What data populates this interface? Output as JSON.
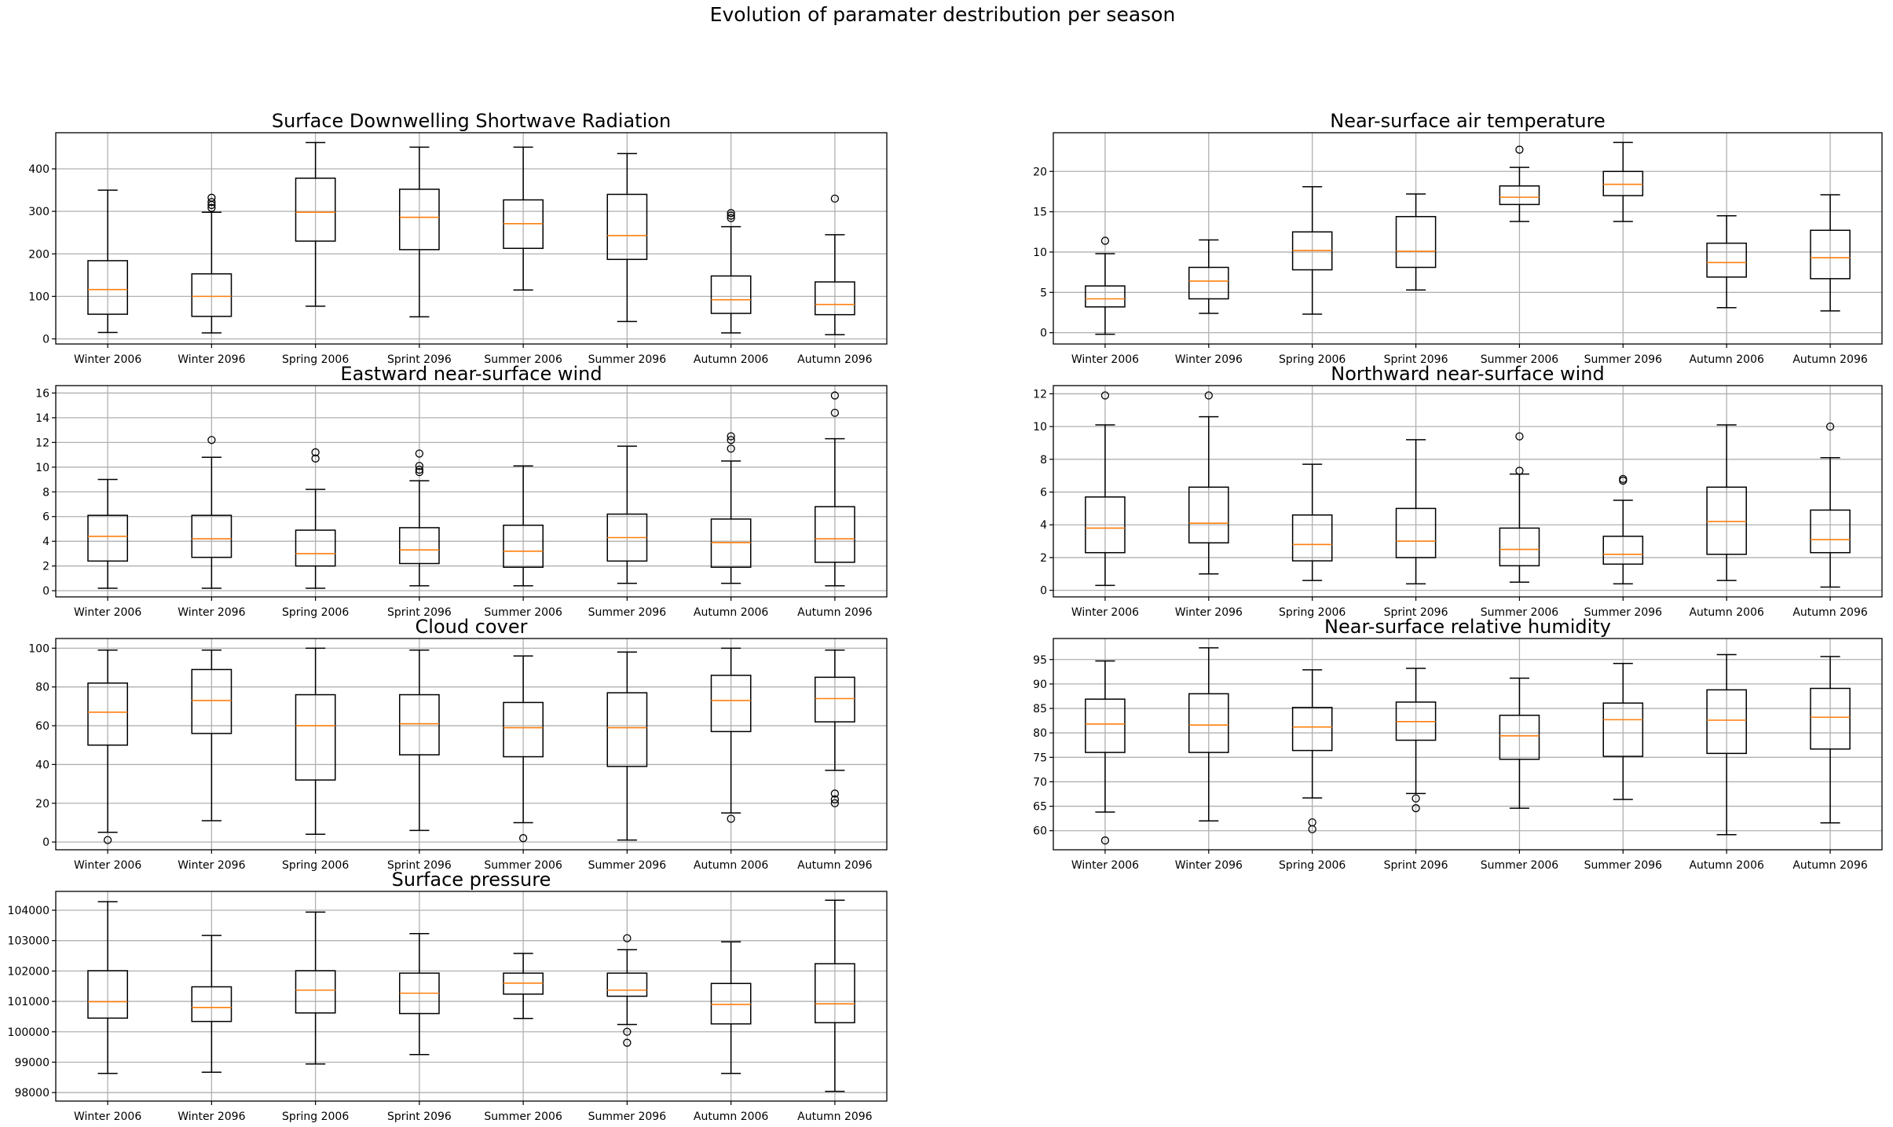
{
  "figure": {
    "suptitle": "Evolution of paramater destribution per season"
  },
  "chart_data": [
    {
      "type": "boxplot",
      "title": "Surface Downwelling Shortwave Radiation",
      "categories": [
        "Winter 2006",
        "Winter 2096",
        "Spring 2006",
        "Sprint 2096",
        "Summer 2006",
        "Summer 2096",
        "Autumn 2006",
        "Autumn 2096"
      ],
      "ylim": [
        -12,
        485
      ],
      "yticks": [
        0,
        100,
        200,
        300,
        400
      ],
      "grid": true,
      "boxes": [
        {
          "whislo": 15,
          "q1": 58,
          "med": 116,
          "q3": 184,
          "whishi": 350,
          "fliers": []
        },
        {
          "whislo": 14,
          "q1": 53,
          "med": 100,
          "q3": 153,
          "whishi": 298,
          "fliers": [
            308,
            315,
            322,
            332
          ]
        },
        {
          "whislo": 77,
          "q1": 230,
          "med": 298,
          "q3": 378,
          "whishi": 462,
          "fliers": []
        },
        {
          "whislo": 52,
          "q1": 210,
          "med": 286,
          "q3": 352,
          "whishi": 451,
          "fliers": []
        },
        {
          "whislo": 115,
          "q1": 213,
          "med": 271,
          "q3": 327,
          "whishi": 451,
          "fliers": []
        },
        {
          "whislo": 41,
          "q1": 187,
          "med": 243,
          "q3": 340,
          "whishi": 436,
          "fliers": []
        },
        {
          "whislo": 14,
          "q1": 60,
          "med": 92,
          "q3": 148,
          "whishi": 264,
          "fliers": [
            284,
            290,
            296
          ]
        },
        {
          "whislo": 10,
          "q1": 57,
          "med": 81,
          "q3": 134,
          "whishi": 245,
          "fliers": [
            330
          ]
        }
      ]
    },
    {
      "type": "boxplot",
      "title": "Near-surface air temperature",
      "categories": [
        "Winter 2006",
        "Winter 2096",
        "Spring 2006",
        "Sprint 2096",
        "Summer 2006",
        "Summer 2096",
        "Autumn 2006",
        "Autumn 2096"
      ],
      "ylim": [
        -1.4,
        24.8
      ],
      "yticks": [
        0,
        5,
        10,
        15,
        20
      ],
      "grid": true,
      "boxes": [
        {
          "whislo": -0.2,
          "q1": 3.2,
          "med": 4.2,
          "q3": 5.8,
          "whishi": 9.8,
          "fliers": [
            11.4
          ]
        },
        {
          "whislo": 2.4,
          "q1": 4.2,
          "med": 6.4,
          "q3": 8.1,
          "whishi": 11.5,
          "fliers": []
        },
        {
          "whislo": 2.3,
          "q1": 7.8,
          "med": 10.2,
          "q3": 12.5,
          "whishi": 18.1,
          "fliers": []
        },
        {
          "whislo": 5.3,
          "q1": 8.1,
          "med": 10.1,
          "q3": 14.4,
          "whishi": 17.2,
          "fliers": []
        },
        {
          "whislo": 13.8,
          "q1": 15.9,
          "med": 16.8,
          "q3": 18.2,
          "whishi": 20.5,
          "fliers": [
            22.7
          ]
        },
        {
          "whislo": 13.8,
          "q1": 17.0,
          "med": 18.4,
          "q3": 20.0,
          "whishi": 23.6,
          "fliers": []
        },
        {
          "whislo": 3.1,
          "q1": 6.9,
          "med": 8.7,
          "q3": 11.1,
          "whishi": 14.5,
          "fliers": []
        },
        {
          "whislo": 2.7,
          "q1": 6.7,
          "med": 9.3,
          "q3": 12.7,
          "whishi": 17.1,
          "fliers": []
        }
      ]
    },
    {
      "type": "boxplot",
      "title": "Eastward near-surface wind",
      "categories": [
        "Winter 2006",
        "Winter 2096",
        "Spring 2006",
        "Sprint 2096",
        "Summer 2006",
        "Summer 2096",
        "Autumn 2006",
        "Autumn 2096"
      ],
      "ylim": [
        -0.5,
        16.6
      ],
      "yticks": [
        0,
        2,
        4,
        6,
        8,
        10,
        12,
        14,
        16
      ],
      "grid": true,
      "boxes": [
        {
          "whislo": 0.2,
          "q1": 2.4,
          "med": 4.4,
          "q3": 6.1,
          "whishi": 9.0,
          "fliers": []
        },
        {
          "whislo": 0.2,
          "q1": 2.7,
          "med": 4.2,
          "q3": 6.1,
          "whishi": 10.8,
          "fliers": [
            12.2
          ]
        },
        {
          "whislo": 0.2,
          "q1": 2.0,
          "med": 3.0,
          "q3": 4.9,
          "whishi": 8.2,
          "fliers": [
            10.7,
            11.2
          ]
        },
        {
          "whislo": 0.4,
          "q1": 2.2,
          "med": 3.3,
          "q3": 5.1,
          "whishi": 8.9,
          "fliers": [
            9.6,
            9.8,
            10.1,
            11.1
          ]
        },
        {
          "whislo": 0.4,
          "q1": 1.9,
          "med": 3.2,
          "q3": 5.3,
          "whishi": 10.1,
          "fliers": []
        },
        {
          "whislo": 0.6,
          "q1": 2.4,
          "med": 4.3,
          "q3": 6.2,
          "whishi": 11.7,
          "fliers": []
        },
        {
          "whislo": 0.6,
          "q1": 1.9,
          "med": 3.9,
          "q3": 5.8,
          "whishi": 10.5,
          "fliers": [
            11.5,
            12.2,
            12.5
          ]
        },
        {
          "whislo": 0.4,
          "q1": 2.3,
          "med": 4.2,
          "q3": 6.8,
          "whishi": 12.3,
          "fliers": [
            14.4,
            15.8
          ]
        }
      ]
    },
    {
      "type": "boxplot",
      "title": "Northward near-surface wind",
      "categories": [
        "Winter 2006",
        "Winter 2096",
        "Spring 2006",
        "Sprint 2096",
        "Summer 2006",
        "Summer 2096",
        "Autumn 2006",
        "Autumn 2096"
      ],
      "ylim": [
        -0.4,
        12.5
      ],
      "yticks": [
        0,
        2,
        4,
        6,
        8,
        10,
        12
      ],
      "grid": true,
      "boxes": [
        {
          "whislo": 0.3,
          "q1": 2.3,
          "med": 3.8,
          "q3": 5.7,
          "whishi": 10.1,
          "fliers": [
            11.9
          ]
        },
        {
          "whislo": 1.0,
          "q1": 2.9,
          "med": 4.1,
          "q3": 6.3,
          "whishi": 10.6,
          "fliers": [
            11.9
          ]
        },
        {
          "whislo": 0.6,
          "q1": 1.8,
          "med": 2.8,
          "q3": 4.6,
          "whishi": 7.7,
          "fliers": []
        },
        {
          "whislo": 0.4,
          "q1": 2.0,
          "med": 3.0,
          "q3": 5.0,
          "whishi": 9.2,
          "fliers": []
        },
        {
          "whislo": 0.5,
          "q1": 1.5,
          "med": 2.5,
          "q3": 3.8,
          "whishi": 7.1,
          "fliers": [
            7.3,
            9.4
          ]
        },
        {
          "whislo": 0.4,
          "q1": 1.6,
          "med": 2.2,
          "q3": 3.3,
          "whishi": 5.5,
          "fliers": [
            6.7,
            6.8
          ]
        },
        {
          "whislo": 0.6,
          "q1": 2.2,
          "med": 4.2,
          "q3": 6.3,
          "whishi": 10.1,
          "fliers": []
        },
        {
          "whislo": 0.2,
          "q1": 2.3,
          "med": 3.1,
          "q3": 4.9,
          "whishi": 8.1,
          "fliers": [
            10.0
          ]
        }
      ]
    },
    {
      "type": "boxplot",
      "title": "Cloud cover",
      "categories": [
        "Winter 2006",
        "Winter 2096",
        "Spring 2006",
        "Sprint 2096",
        "Summer 2006",
        "Summer 2096",
        "Autumn 2006",
        "Autumn 2096"
      ],
      "ylim": [
        -4,
        105
      ],
      "yticks": [
        0,
        20,
        40,
        60,
        80,
        100
      ],
      "grid": true,
      "boxes": [
        {
          "whislo": 5,
          "q1": 50,
          "med": 67,
          "q3": 82,
          "whishi": 99,
          "fliers": [
            1
          ]
        },
        {
          "whislo": 11,
          "q1": 56,
          "med": 73,
          "q3": 89,
          "whishi": 99,
          "fliers": []
        },
        {
          "whislo": 4,
          "q1": 32,
          "med": 60,
          "q3": 76,
          "whishi": 100,
          "fliers": []
        },
        {
          "whislo": 6,
          "q1": 45,
          "med": 61,
          "q3": 76,
          "whishi": 99,
          "fliers": []
        },
        {
          "whislo": 10,
          "q1": 44,
          "med": 59,
          "q3": 72,
          "whishi": 96,
          "fliers": [
            2
          ]
        },
        {
          "whislo": 1,
          "q1": 39,
          "med": 59,
          "q3": 77,
          "whishi": 98,
          "fliers": []
        },
        {
          "whislo": 15,
          "q1": 57,
          "med": 73,
          "q3": 86,
          "whishi": 100,
          "fliers": [
            12
          ]
        },
        {
          "whislo": 37,
          "q1": 62,
          "med": 74,
          "q3": 85,
          "whishi": 99,
          "fliers": [
            20,
            22,
            25
          ]
        }
      ]
    },
    {
      "type": "boxplot",
      "title": "Near-surface relative humidity",
      "categories": [
        "Winter 2006",
        "Winter 2096",
        "Spring 2006",
        "Sprint 2096",
        "Summer 2006",
        "Summer 2096",
        "Autumn 2006",
        "Autumn 2096"
      ],
      "ylim": [
        56.1,
        99.3
      ],
      "yticks": [
        60,
        65,
        70,
        75,
        80,
        85,
        90,
        95
      ],
      "grid": true,
      "boxes": [
        {
          "whislo": 63.8,
          "q1": 76.0,
          "med": 81.8,
          "q3": 86.9,
          "whishi": 94.7,
          "fliers": [
            58.0
          ]
        },
        {
          "whislo": 62.0,
          "q1": 76.0,
          "med": 81.6,
          "q3": 88.0,
          "whishi": 97.4,
          "fliers": []
        },
        {
          "whislo": 66.7,
          "q1": 76.4,
          "med": 81.2,
          "q3": 85.2,
          "whishi": 92.9,
          "fliers": [
            60.3,
            61.7
          ]
        },
        {
          "whislo": 67.6,
          "q1": 78.5,
          "med": 82.3,
          "q3": 86.3,
          "whishi": 93.2,
          "fliers": [
            64.6,
            66.6
          ]
        },
        {
          "whislo": 64.6,
          "q1": 74.6,
          "med": 79.4,
          "q3": 83.6,
          "whishi": 91.2,
          "fliers": []
        },
        {
          "whislo": 66.4,
          "q1": 75.2,
          "med": 82.7,
          "q3": 86.1,
          "whishi": 94.2,
          "fliers": []
        },
        {
          "whislo": 59.2,
          "q1": 75.8,
          "med": 82.6,
          "q3": 88.8,
          "whishi": 96.0,
          "fliers": []
        },
        {
          "whislo": 61.6,
          "q1": 76.7,
          "med": 83.2,
          "q3": 89.1,
          "whishi": 95.6,
          "fliers": []
        }
      ]
    },
    {
      "type": "boxplot",
      "title": "Surface pressure",
      "categories": [
        "Winter 2006",
        "Winter 2096",
        "Spring 2006",
        "Sprint 2096",
        "Summer 2006",
        "Summer 2096",
        "Autumn 2006",
        "Autumn 2096"
      ],
      "ylim": [
        97720,
        104620
      ],
      "yticks": [
        98000,
        99000,
        100000,
        101000,
        102000,
        103000,
        104000
      ],
      "grid": true,
      "boxes": [
        {
          "whislo": 98630,
          "q1": 100450,
          "med": 100990,
          "q3": 102010,
          "whishi": 104280,
          "fliers": []
        },
        {
          "whislo": 98670,
          "q1": 100340,
          "med": 100800,
          "q3": 101480,
          "whishi": 103170,
          "fliers": []
        },
        {
          "whislo": 98940,
          "q1": 100620,
          "med": 101370,
          "q3": 102010,
          "whishi": 103940,
          "fliers": []
        },
        {
          "whislo": 99250,
          "q1": 100600,
          "med": 101270,
          "q3": 101930,
          "whishi": 103230,
          "fliers": []
        },
        {
          "whislo": 100440,
          "q1": 101240,
          "med": 101600,
          "q3": 101930,
          "whishi": 102580,
          "fliers": []
        },
        {
          "whislo": 100240,
          "q1": 101170,
          "med": 101370,
          "q3": 101930,
          "whishi": 102700,
          "fliers": [
            99640,
            100000,
            103080
          ]
        },
        {
          "whislo": 98630,
          "q1": 100260,
          "med": 100900,
          "q3": 101590,
          "whishi": 102960,
          "fliers": []
        },
        {
          "whislo": 98040,
          "q1": 100300,
          "med": 100920,
          "q3": 102240,
          "whishi": 104330,
          "fliers": []
        }
      ]
    }
  ],
  "colors": {
    "median": "#ff7f0e",
    "box": "#000000",
    "grid": "#b0b0b0"
  }
}
